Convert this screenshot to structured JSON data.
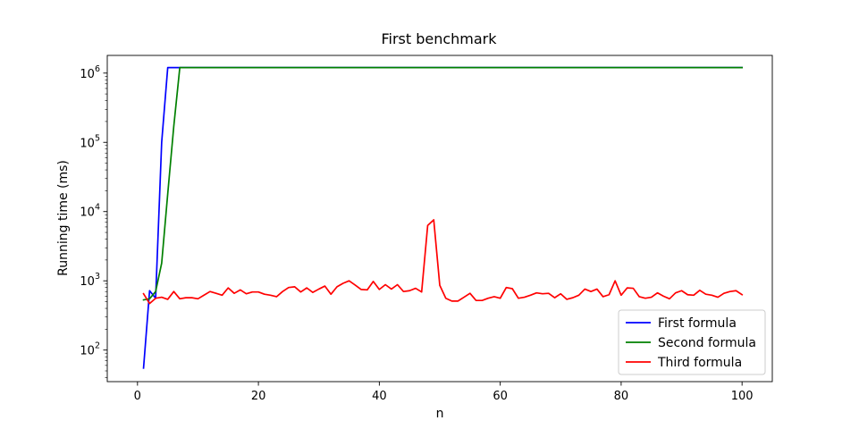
{
  "chart_data": {
    "type": "line",
    "title": "First benchmark",
    "xlabel": "n",
    "ylabel": "Running time (ms)",
    "xlim": [
      -5,
      105
    ],
    "ylim": [
      35,
      1800000
    ],
    "yscale": "log",
    "grid": false,
    "legend_position": "lower right",
    "x_ticks": [
      0,
      20,
      40,
      60,
      80,
      100
    ],
    "x_tick_labels": [
      "0",
      "20",
      "40",
      "60",
      "80",
      "100"
    ],
    "y_ticks": [
      100,
      1000,
      10000,
      100000,
      1000000
    ],
    "y_tick_labels": [
      {
        "base": "10",
        "exp": "2"
      },
      {
        "base": "10",
        "exp": "3"
      },
      {
        "base": "10",
        "exp": "4"
      },
      {
        "base": "10",
        "exp": "5"
      },
      {
        "base": "10",
        "exp": "6"
      }
    ],
    "series": [
      {
        "name": "First formula",
        "color": "#0000ff",
        "x": [
          1,
          2,
          3,
          4,
          5,
          100
        ],
        "y": [
          55,
          720,
          560,
          100000,
          1200000,
          1200000
        ]
      },
      {
        "name": "Second formula",
        "color": "#008000",
        "x": [
          1,
          2,
          3,
          4,
          5,
          6,
          7,
          100
        ],
        "y": [
          530,
          550,
          700,
          1800,
          18000,
          170000,
          1200000,
          1200000
        ]
      },
      {
        "name": "Third formula",
        "color": "#ff0000",
        "x": [
          1,
          2,
          3,
          4,
          5,
          6,
          7,
          8,
          9,
          10,
          11,
          12,
          13,
          14,
          15,
          16,
          17,
          18,
          19,
          20,
          21,
          22,
          23,
          24,
          25,
          26,
          27,
          28,
          29,
          30,
          31,
          32,
          33,
          34,
          35,
          36,
          37,
          38,
          39,
          40,
          41,
          42,
          43,
          44,
          45,
          46,
          47,
          48,
          49,
          50,
          51,
          52,
          53,
          54,
          55,
          56,
          57,
          58,
          59,
          60,
          61,
          62,
          63,
          64,
          65,
          66,
          67,
          68,
          69,
          70,
          71,
          72,
          73,
          74,
          75,
          76,
          77,
          78,
          79,
          80,
          81,
          82,
          83,
          84,
          85,
          86,
          87,
          88,
          89,
          90,
          91,
          92,
          93,
          94,
          95,
          96,
          97,
          98,
          99,
          100
        ],
        "y": [
          650,
          470,
          560,
          580,
          540,
          700,
          550,
          570,
          570,
          550,
          620,
          700,
          660,
          620,
          790,
          660,
          740,
          650,
          690,
          690,
          640,
          620,
          590,
          700,
          800,
          820,
          690,
          790,
          680,
          760,
          840,
          640,
          820,
          920,
          1000,
          870,
          750,
          740,
          980,
          750,
          880,
          760,
          880,
          700,
          720,
          780,
          690,
          6300,
          7600,
          860,
          560,
          510,
          510,
          580,
          660,
          520,
          520,
          560,
          590,
          560,
          800,
          770,
          560,
          580,
          620,
          670,
          650,
          660,
          570,
          650,
          540,
          570,
          620,
          760,
          700,
          760,
          590,
          630,
          1000,
          620,
          790,
          780,
          590,
          560,
          580,
          670,
          600,
          550,
          670,
          720,
          630,
          620,
          730,
          640,
          620,
          580,
          660,
          700,
          720,
          630
        ]
      }
    ]
  }
}
